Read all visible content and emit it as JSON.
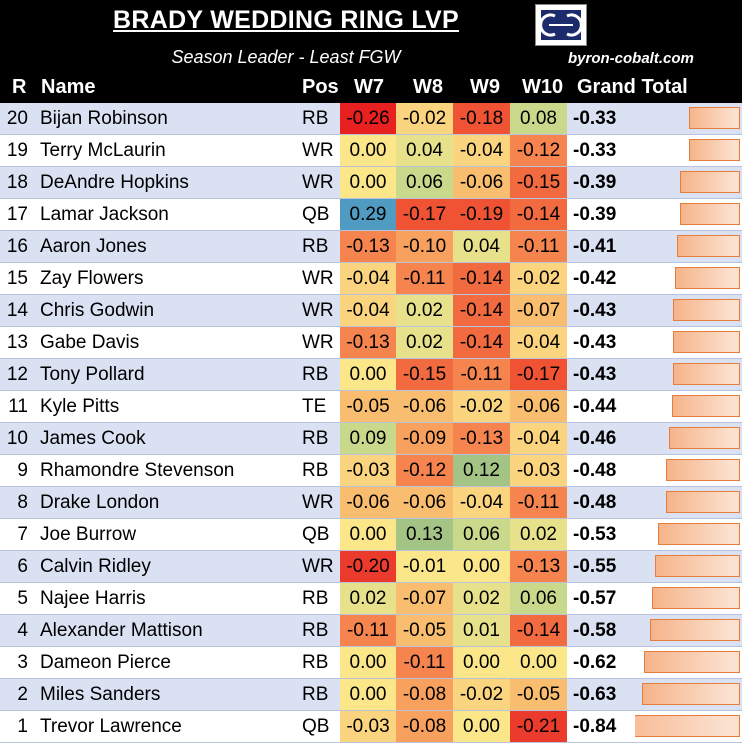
{
  "header": {
    "title": "BRADY WEDDING RING LVP",
    "subtitle": "Season Leader - Least FGW",
    "site": "byron-cobalt.com",
    "logo_icon": "kc-logo-icon"
  },
  "columns": {
    "rank": "R",
    "name": "Name",
    "pos": "Pos",
    "w7": "W7",
    "w8": "W8",
    "w9": "W9",
    "w10": "W10",
    "total": "Grand Total"
  },
  "colors": {
    "header_bg": "#000000",
    "row_alt": "#d9e1f2",
    "bar_border": "#e57e3c",
    "bar_fill": "#f6b48a"
  },
  "chart_data": {
    "type": "table",
    "columns": [
      "R",
      "Name",
      "Pos",
      "W7",
      "W8",
      "W9",
      "W10",
      "Grand Total"
    ],
    "rows": [
      {
        "r": "20",
        "name": "Bijan Robinson",
        "pos": "RB",
        "w7": "-0.26",
        "w8": "-0.02",
        "w9": "-0.18",
        "w10": "0.08",
        "total": "-0.33"
      },
      {
        "r": "19",
        "name": "Terry McLaurin",
        "pos": "WR",
        "w7": "0.00",
        "w8": "0.04",
        "w9": "-0.04",
        "w10": "-0.12",
        "total": "-0.33"
      },
      {
        "r": "18",
        "name": "DeAndre Hopkins",
        "pos": "WR",
        "w7": "0.00",
        "w8": "0.06",
        "w9": "-0.06",
        "w10": "-0.15",
        "total": "-0.39"
      },
      {
        "r": "17",
        "name": "Lamar Jackson",
        "pos": "QB",
        "w7": "0.29",
        "w8": "-0.17",
        "w9": "-0.19",
        "w10": "-0.14",
        "total": "-0.39"
      },
      {
        "r": "16",
        "name": "Aaron Jones",
        "pos": "RB",
        "w7": "-0.13",
        "w8": "-0.10",
        "w9": "0.04",
        "w10": "-0.11",
        "total": "-0.41"
      },
      {
        "r": "15",
        "name": "Zay Flowers",
        "pos": "WR",
        "w7": "-0.04",
        "w8": "-0.11",
        "w9": "-0.14",
        "w10": "-0.02",
        "total": "-0.42"
      },
      {
        "r": "14",
        "name": "Chris Godwin",
        "pos": "WR",
        "w7": "-0.04",
        "w8": "0.02",
        "w9": "-0.14",
        "w10": "-0.07",
        "total": "-0.43"
      },
      {
        "r": "13",
        "name": "Gabe Davis",
        "pos": "WR",
        "w7": "-0.13",
        "w8": "0.02",
        "w9": "-0.14",
        "w10": "-0.04",
        "total": "-0.43"
      },
      {
        "r": "12",
        "name": "Tony Pollard",
        "pos": "RB",
        "w7": "0.00",
        "w8": "-0.15",
        "w9": "-0.11",
        "w10": "-0.17",
        "total": "-0.43"
      },
      {
        "r": "11",
        "name": "Kyle Pitts",
        "pos": "TE",
        "w7": "-0.05",
        "w8": "-0.06",
        "w9": "-0.02",
        "w10": "-0.06",
        "total": "-0.44"
      },
      {
        "r": "10",
        "name": "James Cook",
        "pos": "RB",
        "w7": "0.09",
        "w8": "-0.09",
        "w9": "-0.13",
        "w10": "-0.04",
        "total": "-0.46"
      },
      {
        "r": "9",
        "name": "Rhamondre Stevenson",
        "pos": "RB",
        "w7": "-0.03",
        "w8": "-0.12",
        "w9": "0.12",
        "w10": "-0.03",
        "total": "-0.48"
      },
      {
        "r": "8",
        "name": "Drake London",
        "pos": "WR",
        "w7": "-0.06",
        "w8": "-0.06",
        "w9": "-0.04",
        "w10": "-0.11",
        "total": "-0.48"
      },
      {
        "r": "7",
        "name": "Joe Burrow",
        "pos": "QB",
        "w7": "0.00",
        "w8": "0.13",
        "w9": "0.06",
        "w10": "0.02",
        "total": "-0.53"
      },
      {
        "r": "6",
        "name": "Calvin Ridley",
        "pos": "WR",
        "w7": "-0.20",
        "w8": "-0.01",
        "w9": "0.00",
        "w10": "-0.13",
        "total": "-0.55"
      },
      {
        "r": "5",
        "name": "Najee Harris",
        "pos": "RB",
        "w7": "0.02",
        "w8": "-0.07",
        "w9": "0.02",
        "w10": "0.06",
        "total": "-0.57"
      },
      {
        "r": "4",
        "name": "Alexander Mattison",
        "pos": "RB",
        "w7": "-0.11",
        "w8": "-0.05",
        "w9": "0.01",
        "w10": "-0.14",
        "total": "-0.58"
      },
      {
        "r": "3",
        "name": "Dameon Pierce",
        "pos": "RB",
        "w7": "0.00",
        "w8": "-0.11",
        "w9": "0.00",
        "w10": "0.00",
        "total": "-0.62"
      },
      {
        "r": "2",
        "name": "Miles Sanders",
        "pos": "RB",
        "w7": "0.00",
        "w8": "-0.08",
        "w9": "-0.02",
        "w10": "-0.05",
        "total": "-0.63"
      },
      {
        "r": "1",
        "name": "Trevor Lawrence",
        "pos": "QB",
        "w7": "-0.03",
        "w8": "-0.08",
        "w9": "0.00",
        "w10": "-0.21",
        "total": "-0.84"
      }
    ]
  }
}
